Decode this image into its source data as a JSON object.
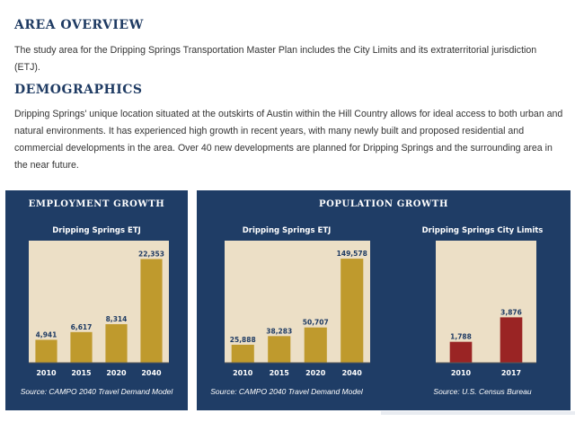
{
  "sections": {
    "area_overview": {
      "heading": "AREA OVERVIEW",
      "body": "The study area for the Dripping Springs Transportation Master Plan includes the City Limits and its extraterritorial jurisdiction (ETJ)."
    },
    "demographics": {
      "heading": "DEMOGRAPHICS",
      "body": "Dripping Springs' unique location situated at the outskirts of Austin within the Hill Country allows for ideal access to both urban and natural environments. It has experienced high growth in recent years, with many newly built and proposed residential and commercial developments in the area. Over 40 new developments are planned for Dripping Springs and the surrounding area in the near future."
    }
  },
  "panels": {
    "employment": {
      "title": "EMPLOYMENT GROWTH",
      "source": "Source: CAMPO 2040 Travel Demand Model"
    },
    "population": {
      "title": "POPULATION GROWTH",
      "source_etj": "Source: CAMPO 2040 Travel Demand Model",
      "source_city": "Source: U.S. Census Bureau"
    }
  },
  "colors": {
    "panel_bg": "#1f3d66",
    "plot_bg": "#ecdfc6",
    "gold": "#bf9a2d",
    "red": "#9a2424",
    "heading": "#1f3b63"
  },
  "chart_data": [
    {
      "type": "bar",
      "title": "Dripping Springs ETJ",
      "categories": [
        "2010",
        "2015",
        "2020",
        "2040"
      ],
      "values": [
        4941,
        6617,
        8314,
        22353
      ],
      "labels": [
        "4,941",
        "6,617",
        "8,314",
        "22,353"
      ],
      "ylim": [
        0,
        24000
      ],
      "grid": false,
      "color": "#bf9a2d"
    },
    {
      "type": "bar",
      "title": "Dripping Springs ETJ",
      "categories": [
        "2010",
        "2015",
        "2020",
        "2040"
      ],
      "values": [
        25888,
        38283,
        50707,
        149578
      ],
      "labels": [
        "25,888",
        "38,283",
        "50,707",
        "149,578"
      ],
      "ylim": [
        0,
        160000
      ],
      "grid": false,
      "color": "#bf9a2d"
    },
    {
      "type": "bar",
      "title": "Dripping Springs City Limits",
      "categories": [
        "2010",
        "2017"
      ],
      "values": [
        1788,
        3876
      ],
      "labels": [
        "1,788",
        "3,876"
      ],
      "ylim": [
        0,
        9500
      ],
      "grid": false,
      "color": "#9a2424"
    }
  ]
}
